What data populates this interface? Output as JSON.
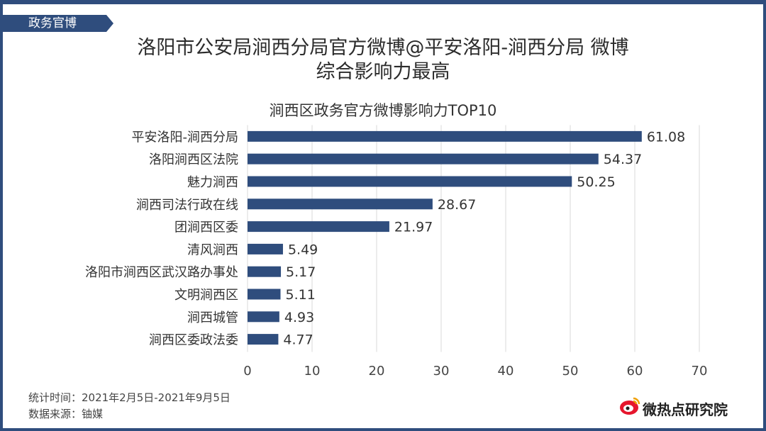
{
  "section_tag": "政务官博",
  "headline": {
    "line1": "洛阳市公安局涧西分局官方微博@平安洛阳-涧西分局 微博",
    "line2": "综合影响力最高"
  },
  "chart_data": {
    "type": "bar",
    "orientation": "horizontal",
    "title": "涧西区政务官方微博影响力TOP10",
    "categories": [
      "平安洛阳-涧西分局",
      "洛阳涧西区法院",
      "魅力涧西",
      "涧西司法行政在线",
      "团涧西区委",
      "清风涧西",
      "洛阳市涧西区武汉路办事处",
      "文明涧西区",
      "涧西城管",
      "涧西区委政法委"
    ],
    "values": [
      61.08,
      54.37,
      50.25,
      28.67,
      21.97,
      5.49,
      5.17,
      5.11,
      4.93,
      4.77
    ],
    "value_labels": [
      "61.08",
      "54.37",
      "50.25",
      "28.67",
      "21.97",
      "5.49",
      "5.17",
      "5.11",
      "4.93",
      "4.77"
    ],
    "xlim": [
      0,
      70
    ],
    "xticks": [
      0,
      10,
      20,
      30,
      40,
      50,
      60,
      70
    ],
    "grid": "vertical",
    "bar_color": "#2f4d7d"
  },
  "footer": {
    "period": "统计时间：2021年2月5日-2021年9月5日",
    "source": "数据来源：铀媒"
  },
  "logo": {
    "text": "微热点研究院",
    "icon": "weibo-eye-icon"
  },
  "colors": {
    "accent": "#2f4d7d",
    "logo_red": "#e6162d"
  }
}
